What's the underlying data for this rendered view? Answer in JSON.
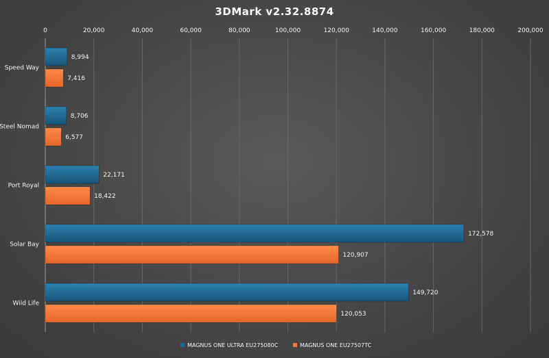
{
  "chart_data": {
    "type": "bar",
    "orientation": "horizontal",
    "title": "3DMark v2.32.8874",
    "xlabel": "",
    "ylabel": "",
    "xlim": [
      0,
      200000
    ],
    "ticks": [
      0,
      20000,
      40000,
      60000,
      80000,
      100000,
      120000,
      140000,
      160000,
      180000,
      200000
    ],
    "tick_labels": [
      "0",
      "20,000",
      "40,000",
      "60,000",
      "80,000",
      "100,000",
      "120,000",
      "140,000",
      "160,000",
      "180,000",
      "200,000"
    ],
    "tick_position": "top",
    "grid": true,
    "legend_position": "bottom",
    "categories": [
      "Speed Way",
      "Steel Nomad",
      "Port Royal",
      "Solar Bay",
      "Wild Life"
    ],
    "series": [
      {
        "name": "MAGNUS ONE ULTRA EU275080C",
        "color": "#1f6a95",
        "values": [
          8994,
          8706,
          22171,
          172578,
          149720
        ],
        "labels": [
          "8,994",
          "8,706",
          "22,171",
          "172,578",
          "149,720"
        ]
      },
      {
        "name": "MAGNUS ONE EU27507TC",
        "color": "#f07a33",
        "values": [
          7416,
          6577,
          18422,
          120907,
          120053
        ],
        "labels": [
          "7,416",
          "6,577",
          "18,422",
          "120,907",
          "120,053"
        ]
      }
    ]
  }
}
